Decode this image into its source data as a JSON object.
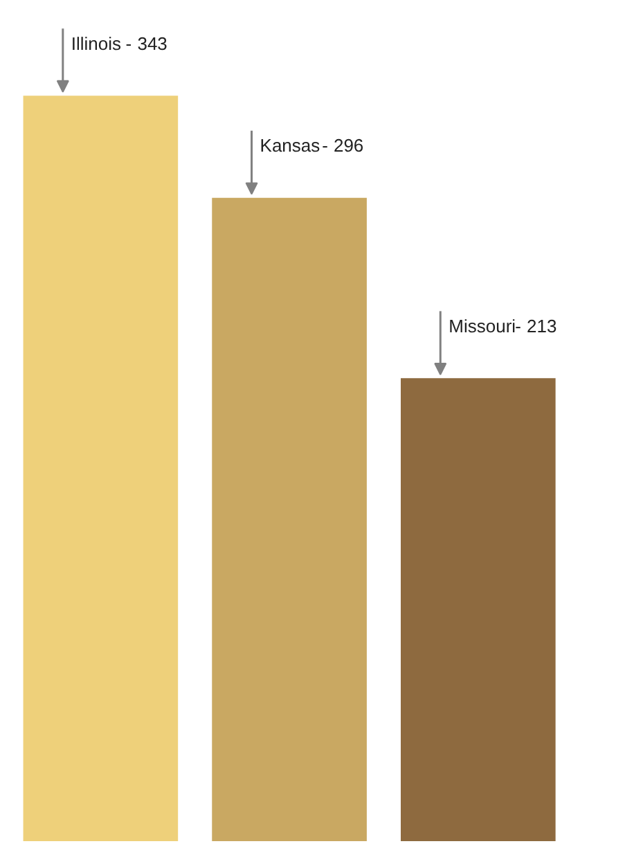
{
  "chart_data": {
    "type": "bar",
    "categories": [
      "Illinois",
      "Kansas",
      "Missouri"
    ],
    "values": [
      343,
      296,
      213
    ],
    "colors": [
      "#eed07a",
      "#c9a862",
      "#8e6a3f"
    ],
    "data_labels": true,
    "annotations": [
      "-",
      "-",
      "-"
    ],
    "grid": false,
    "tick_labels": false
  }
}
